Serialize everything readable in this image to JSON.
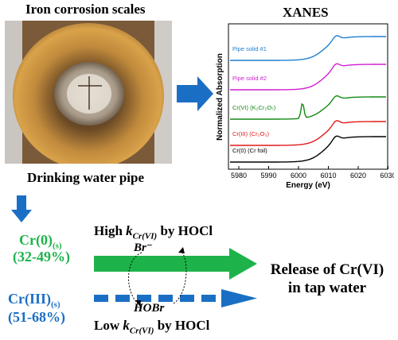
{
  "photo_title": "Iron corrosion scales",
  "photo_caption": "Drinking water pipe",
  "xanes": {
    "title": "XANES",
    "ylabel": "Normalized Absorption",
    "xlabel": "Energy (eV)",
    "ticks": [
      "5980",
      "5990",
      "6000",
      "6010",
      "6020",
      "6030"
    ],
    "legend": [
      "Pipe solid #1",
      "Pipe solid #2",
      "Cr(VI) (K₂Cr₂O₇)",
      "Cr(III) (Cr₂O₃)",
      "Cr(0) (Cr foil)"
    ],
    "colors": [
      "#1f7fd1",
      "#d11fd1",
      "#138a13",
      "#e01919",
      "#000000"
    ]
  },
  "species": {
    "cr0": {
      "name": "Cr(0)",
      "sub": "(s)",
      "percent": "(32-49%)",
      "color": "#1db34a"
    },
    "cr3": {
      "name": "Cr(III)",
      "sub": "(s)",
      "percent": "(51-68%)",
      "color": "#1a6fc4"
    }
  },
  "high_label": {
    "pre": "High",
    "k": "k",
    "ksub": "Cr(VI)",
    "post": "by HOCl"
  },
  "low_label": {
    "pre": "Low",
    "k": "k",
    "ksub": "Cr(VI)",
    "post": "by HOCl"
  },
  "br_label": "Br⁻",
  "hobr_label": "HOBr",
  "release": {
    "line1": "Release of Cr(VI)",
    "line2": "in tap water"
  }
}
